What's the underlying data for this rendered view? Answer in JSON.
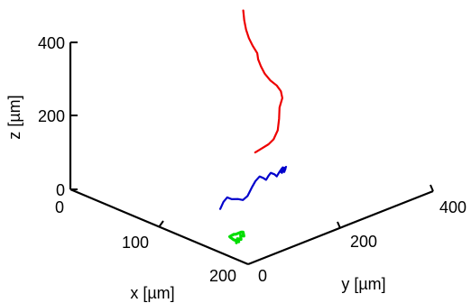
{
  "chart_data": {
    "type": "line3d",
    "axes": {
      "x": {
        "label": "x [µm]",
        "ticks": [
          0,
          100,
          200
        ],
        "range": [
          0,
          200
        ]
      },
      "y": {
        "label": "y [µm]",
        "ticks": [
          0,
          200,
          400
        ],
        "range": [
          0,
          400
        ]
      },
      "z": {
        "label": "z [µm]",
        "ticks": [
          0,
          200,
          400
        ],
        "range": [
          0,
          400
        ]
      }
    },
    "grid": false,
    "series": [
      {
        "color": "#00dd00",
        "points": [
          [
            167,
            38,
            6
          ],
          [
            165,
            44,
            12
          ],
          [
            166,
            50,
            8
          ],
          [
            163,
            55,
            14
          ],
          [
            164,
            60,
            10
          ],
          [
            161,
            64,
            16
          ],
          [
            162,
            58,
            20
          ],
          [
            159,
            52,
            14
          ],
          [
            160,
            46,
            18
          ],
          [
            158,
            41,
            12
          ],
          [
            161,
            36,
            16
          ],
          [
            163,
            40,
            9
          ],
          [
            166,
            45,
            4
          ]
        ]
      },
      {
        "color": "#0000cc",
        "points": [
          [
            140,
            55,
            62
          ],
          [
            140,
            62,
            78
          ],
          [
            139,
            72,
            84
          ],
          [
            139,
            82,
            74
          ],
          [
            139,
            95,
            68
          ],
          [
            139,
            106,
            60
          ],
          [
            139,
            116,
            66
          ],
          [
            138,
            127,
            82
          ],
          [
            138,
            135,
            96
          ],
          [
            138,
            144,
            104
          ],
          [
            138,
            152,
            96
          ],
          [
            138,
            158,
            88
          ],
          [
            138,
            163,
            96
          ],
          [
            137,
            170,
            100
          ],
          [
            137,
            178,
            92
          ],
          [
            137,
            183,
            84
          ],
          [
            136,
            190,
            90
          ],
          [
            136,
            196,
            98
          ],
          [
            136,
            200,
            94
          ],
          [
            136,
            196,
            86
          ],
          [
            136,
            192,
            92
          ],
          [
            136,
            198,
            100
          ],
          [
            136,
            204,
            94
          ],
          [
            136,
            201,
            86
          ],
          [
            136,
            197,
            92
          ],
          [
            136,
            205,
            98
          ]
        ]
      },
      {
        "color": "#ee0000",
        "points": [
          [
            70,
            265,
            40
          ],
          [
            71,
            278,
            46
          ],
          [
            71,
            292,
            50
          ],
          [
            71,
            303,
            58
          ],
          [
            72,
            310,
            80
          ],
          [
            72,
            313,
            110
          ],
          [
            72,
            314,
            140
          ],
          [
            73,
            318,
            165
          ],
          [
            73,
            315,
            185
          ],
          [
            73,
            306,
            205
          ],
          [
            74,
            290,
            228
          ],
          [
            74,
            278,
            252
          ],
          [
            75,
            268,
            278
          ],
          [
            75,
            262,
            300
          ],
          [
            76,
            258,
            320
          ],
          [
            76,
            248,
            345
          ],
          [
            77,
            238,
            372
          ],
          [
            77,
            232,
            398
          ],
          [
            77,
            228,
            425
          ],
          [
            78,
            224,
            455
          ]
        ]
      }
    ]
  }
}
